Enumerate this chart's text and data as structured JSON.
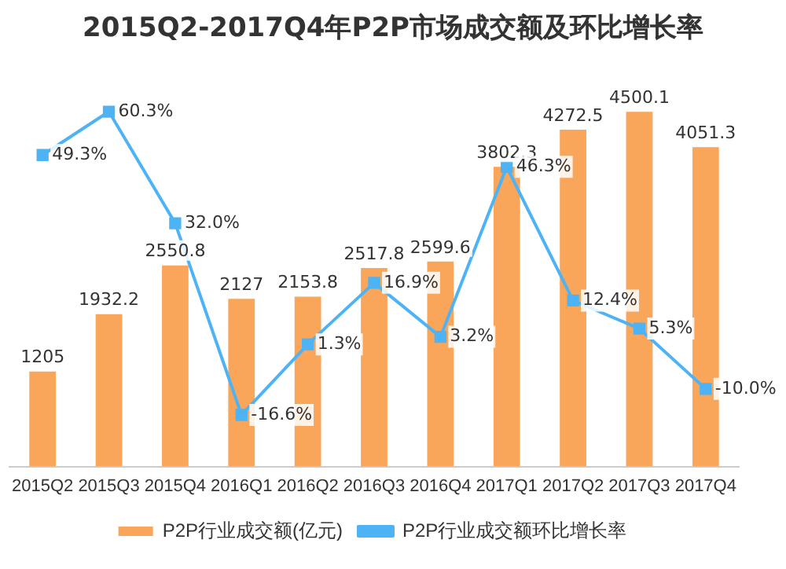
{
  "chart_data": {
    "type": "bar",
    "title": "2015Q2-2017Q4年P2P市场成交额及环比增长率",
    "categories": [
      "2015Q2",
      "2015Q3",
      "2015Q4",
      "2016Q1",
      "2016Q2",
      "2016Q3",
      "2016Q4",
      "2017Q1",
      "2017Q2",
      "2017Q3",
      "2017Q4"
    ],
    "series": [
      {
        "name": "P2P行业成交额(亿元)",
        "color": "#f9a55a",
        "values": [
          1205,
          1932.2,
          2550.8,
          2127,
          2153.8,
          2517.8,
          2599.6,
          3802.3,
          4272.5,
          4500.1,
          4051.3
        ],
        "value_labels": [
          "1205",
          "1932.2",
          "2550.8",
          "2127",
          "2153.8",
          "2517.8",
          "2599.6",
          "3802.3",
          "4272.5",
          "4500.1",
          "4051.3"
        ]
      },
      {
        "name": "P2P行业成交额环比增长率",
        "type": "line",
        "axis": "y2",
        "color": "#4db3f5",
        "marker": "square",
        "values": [
          49.3,
          60.3,
          32.0,
          -16.6,
          1.3,
          16.9,
          3.2,
          46.3,
          12.4,
          5.3,
          -10.0
        ],
        "value_labels": [
          "49.3%",
          "60.3%",
          "32.0%",
          "-16.6%",
          "1.3%",
          "16.9%",
          "3.2%",
          "46.3%",
          "12.4%",
          "5.3%",
          "-10.0%"
        ]
      }
    ],
    "legend": "bottom",
    "grid": false,
    "tick_labels": "x"
  }
}
